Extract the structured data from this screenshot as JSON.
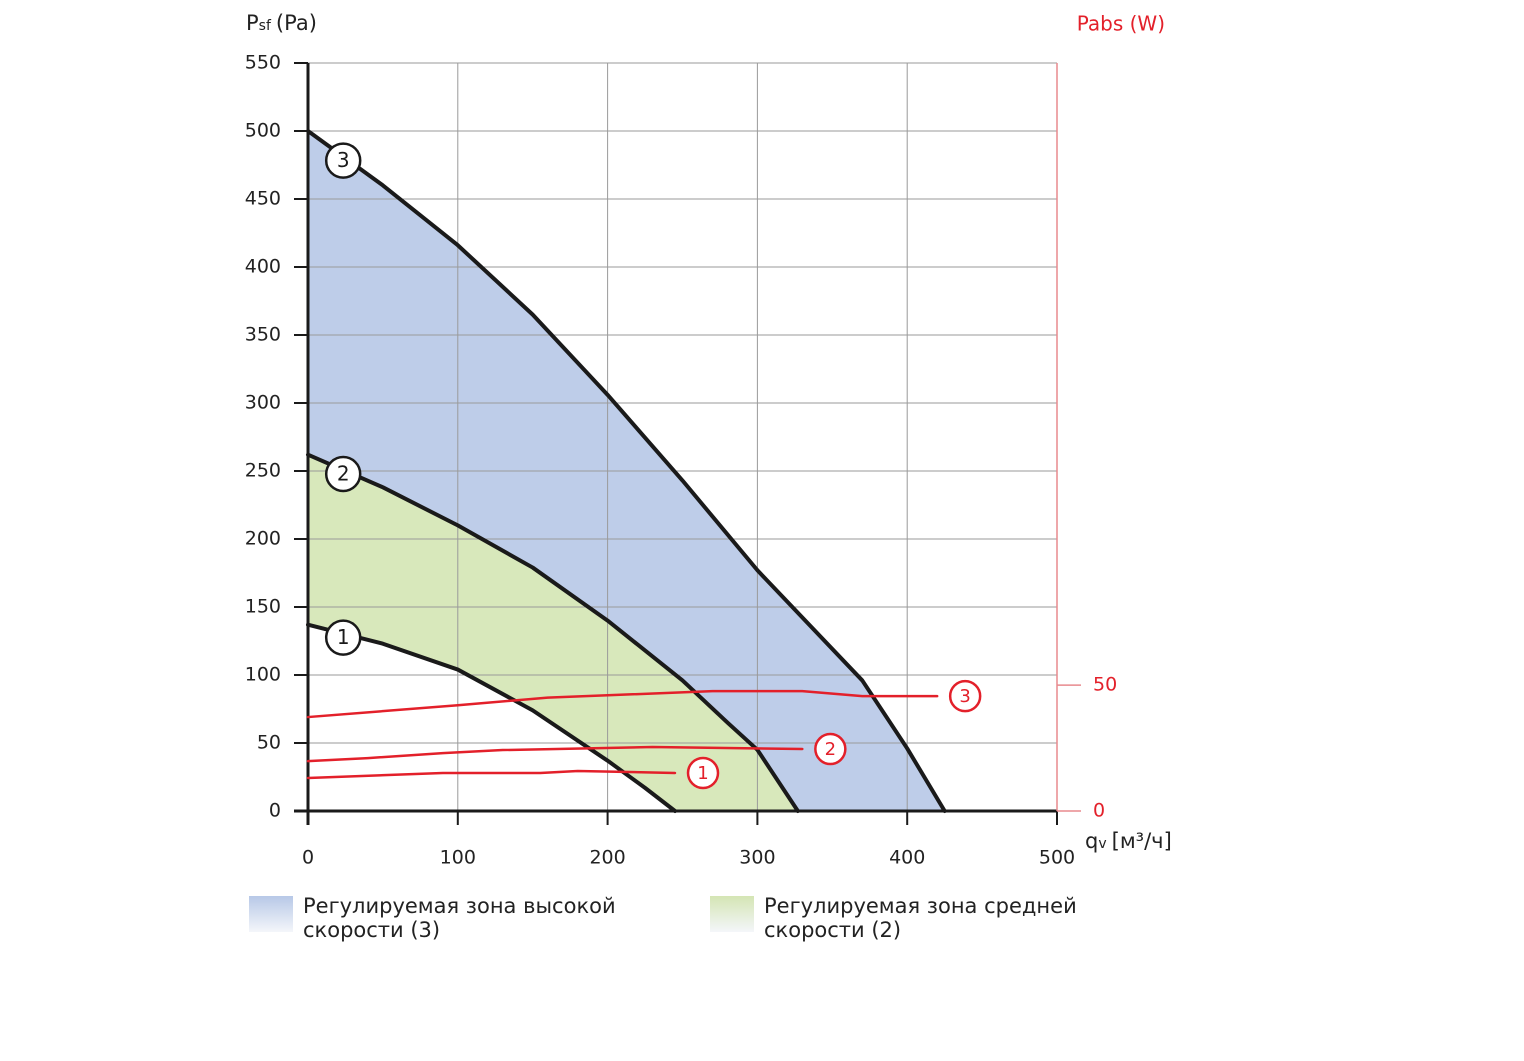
{
  "chart_data": {
    "type": "line",
    "y_label": {
      "main": "P",
      "sub": "sf",
      "unit": "(Pa)"
    },
    "y2_label": "Pabs (W)",
    "x_label": {
      "main": "q",
      "sub": "v",
      "unit": "[м³/ч]"
    },
    "xlim": [
      0,
      500
    ],
    "xticks": [
      0,
      100,
      200,
      300,
      400,
      500
    ],
    "ylim": [
      0,
      550
    ],
    "yticks": [
      0,
      50,
      100,
      150,
      200,
      250,
      300,
      350,
      400,
      450,
      500,
      550
    ],
    "y2lim": [
      0,
      297
    ],
    "y2ticks": [
      0,
      50
    ],
    "grid": true,
    "series": [
      {
        "name": "1",
        "color": "#1a1a1a",
        "x": [
          0,
          50,
          100,
          150,
          200,
          225,
          245
        ],
        "values": [
          137,
          123,
          104,
          74,
          37,
          17,
          0
        ]
      },
      {
        "name": "2",
        "color": "#1a1a1a",
        "x": [
          0,
          50,
          100,
          150,
          200,
          250,
          280,
          300,
          327
        ],
        "values": [
          262,
          238,
          210,
          179,
          140,
          96,
          65,
          45,
          0
        ],
        "zone": "Регулируемая зона средней скорости (2)",
        "zone_color": "#d4e5b4"
      },
      {
        "name": "3",
        "color": "#1a1a1a",
        "x": [
          0,
          50,
          100,
          150,
          200,
          250,
          300,
          370,
          400,
          425
        ],
        "values": [
          500,
          460,
          416,
          365,
          306,
          243,
          177,
          96,
          46,
          0
        ],
        "zone": "Регулируемая зона высокой скорости (3)",
        "zone_color": "#b7c8e7"
      },
      {
        "name": "1",
        "color": "#e3202a",
        "axis": "y2",
        "x": [
          0,
          90,
          155,
          180,
          245
        ],
        "values": [
          13.1,
          15.1,
          15.1,
          15.9,
          15.1
        ]
      },
      {
        "name": "2",
        "color": "#e3202a",
        "axis": "y2",
        "x": [
          0,
          40,
          90,
          130,
          230,
          330
        ],
        "values": [
          19.8,
          21,
          23,
          24.2,
          25.4,
          24.6
        ]
      },
      {
        "name": "3",
        "color": "#e3202a",
        "axis": "y2",
        "x": [
          0,
          100,
          160,
          270,
          330,
          370,
          420
        ],
        "values": [
          37.3,
          42,
          45,
          47.6,
          47.6,
          45.6,
          45.6
        ]
      }
    ]
  }
}
